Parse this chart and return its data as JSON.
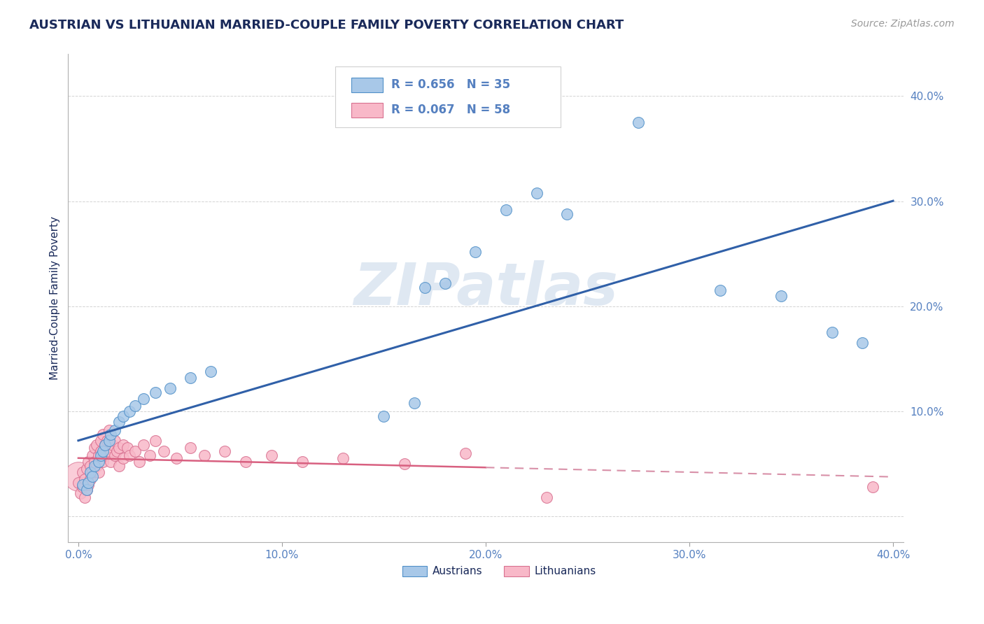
{
  "title": "AUSTRIAN VS LITHUANIAN MARRIED-COUPLE FAMILY POVERTY CORRELATION CHART",
  "source": "Source: ZipAtlas.com",
  "ylabel": "Married-Couple Family Poverty",
  "xlim": [
    0.0,
    0.4
  ],
  "ylim": [
    -0.02,
    0.43
  ],
  "austrian_color": "#a8c8e8",
  "austrian_edge": "#5090c8",
  "lithuanian_color": "#f8b8c8",
  "lithuanian_edge": "#d87090",
  "trendline_austrian_color": "#3060a8",
  "trendline_lithuanian_solid": "#d86080",
  "trendline_lithuanian_dash": "#d890a8",
  "watermark": "ZIPatlas",
  "title_color": "#1a2a5a",
  "axis_label_color": "#4a6ab0",
  "tick_color": "#5580c0",
  "background_color": "#ffffff",
  "austrian_points": [
    [
      0.002,
      0.03
    ],
    [
      0.003,
      0.025
    ],
    [
      0.004,
      0.022
    ],
    [
      0.005,
      0.028
    ],
    [
      0.006,
      0.04
    ],
    [
      0.007,
      0.035
    ],
    [
      0.008,
      0.045
    ],
    [
      0.009,
      0.038
    ],
    [
      0.01,
      0.05
    ],
    [
      0.011,
      0.055
    ],
    [
      0.012,
      0.06
    ],
    [
      0.013,
      0.058
    ],
    [
      0.014,
      0.065
    ],
    [
      0.015,
      0.07
    ],
    [
      0.016,
      0.072
    ],
    [
      0.017,
      0.075
    ],
    [
      0.018,
      0.078
    ],
    [
      0.02,
      0.08
    ],
    [
      0.022,
      0.085
    ],
    [
      0.025,
      0.09
    ],
    [
      0.028,
      0.095
    ],
    [
      0.03,
      0.1
    ],
    [
      0.035,
      0.11
    ],
    [
      0.04,
      0.115
    ],
    [
      0.045,
      0.12
    ],
    [
      0.05,
      0.125
    ],
    [
      0.06,
      0.14
    ],
    [
      0.17,
      0.215
    ],
    [
      0.175,
      0.22
    ],
    [
      0.19,
      0.25
    ],
    [
      0.22,
      0.29
    ],
    [
      0.23,
      0.305
    ],
    [
      0.27,
      0.37
    ],
    [
      0.31,
      0.21
    ],
    [
      0.38,
      0.175
    ]
  ],
  "lithuanian_points": [
    [
      0.0,
      0.03
    ],
    [
      0.001,
      0.02
    ],
    [
      0.002,
      0.025
    ],
    [
      0.003,
      0.018
    ],
    [
      0.003,
      0.03
    ],
    [
      0.004,
      0.022
    ],
    [
      0.004,
      0.035
    ],
    [
      0.005,
      0.028
    ],
    [
      0.005,
      0.04
    ],
    [
      0.006,
      0.045
    ],
    [
      0.006,
      0.03
    ],
    [
      0.007,
      0.055
    ],
    [
      0.007,
      0.038
    ],
    [
      0.008,
      0.05
    ],
    [
      0.008,
      0.06
    ],
    [
      0.009,
      0.045
    ],
    [
      0.009,
      0.065
    ],
    [
      0.01,
      0.055
    ],
    [
      0.01,
      0.04
    ],
    [
      0.011,
      0.06
    ],
    [
      0.011,
      0.07
    ],
    [
      0.012,
      0.05
    ],
    [
      0.012,
      0.075
    ],
    [
      0.013,
      0.065
    ],
    [
      0.014,
      0.07
    ],
    [
      0.014,
      0.055
    ],
    [
      0.015,
      0.06
    ],
    [
      0.015,
      0.08
    ],
    [
      0.016,
      0.05
    ],
    [
      0.017,
      0.065
    ],
    [
      0.018,
      0.055
    ],
    [
      0.018,
      0.07
    ],
    [
      0.02,
      0.06
    ],
    [
      0.02,
      0.045
    ],
    [
      0.022,
      0.065
    ],
    [
      0.025,
      0.055
    ],
    [
      0.025,
      0.07
    ],
    [
      0.028,
      0.06
    ],
    [
      0.03,
      0.05
    ],
    [
      0.03,
      0.065
    ],
    [
      0.035,
      0.055
    ],
    [
      0.035,
      0.07
    ],
    [
      0.04,
      0.06
    ],
    [
      0.045,
      0.05
    ],
    [
      0.05,
      0.065
    ],
    [
      0.055,
      0.055
    ],
    [
      0.06,
      0.06
    ],
    [
      0.065,
      0.05
    ],
    [
      0.07,
      0.055
    ],
    [
      0.075,
      0.06
    ],
    [
      0.08,
      0.05
    ],
    [
      0.09,
      0.055
    ],
    [
      0.1,
      0.05
    ],
    [
      0.12,
      0.055
    ],
    [
      0.13,
      0.05
    ],
    [
      0.16,
      0.05
    ],
    [
      0.23,
      0.015
    ],
    [
      0.39,
      0.025
    ]
  ],
  "austrian_large_x": [
    0.0
  ],
  "austrian_large_y": [
    0.02
  ]
}
